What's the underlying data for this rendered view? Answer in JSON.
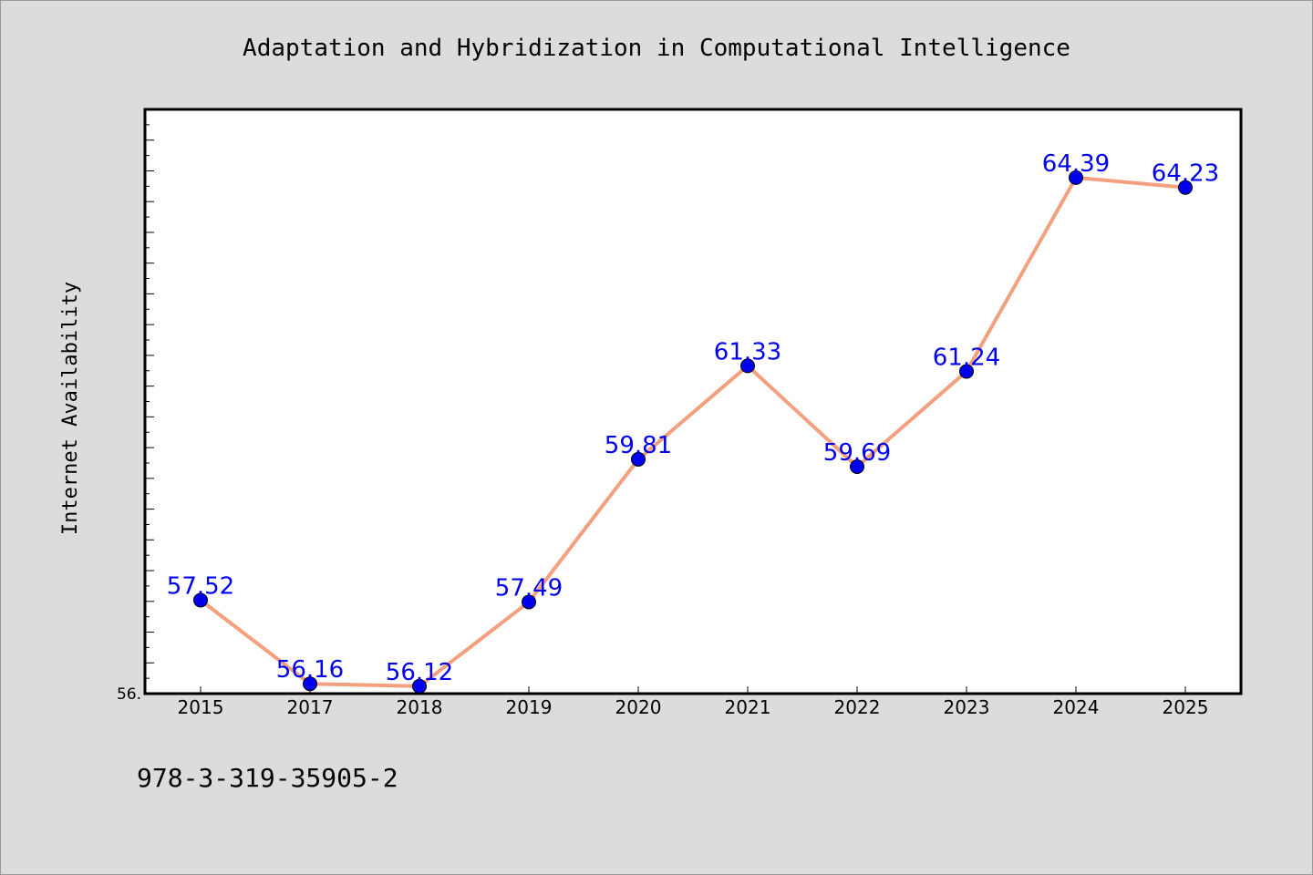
{
  "chart_data": {
    "type": "line",
    "title": "Adaptation and Hybridization in Computational Intelligence",
    "xlabel": "",
    "ylabel": "Internet Availability",
    "categories": [
      "2015",
      "2017",
      "2018",
      "2019",
      "2020",
      "2021",
      "2022",
      "2023",
      "2024",
      "2025"
    ],
    "series": [
      {
        "values": [
          57.52,
          56.16,
          56.12,
          57.49,
          59.81,
          61.33,
          59.69,
          61.24,
          64.39,
          64.23
        ],
        "labels": [
          "57.52",
          "56.16",
          "56.12",
          "57.49",
          "59.81",
          "61.33",
          "59.69",
          "61.24",
          "64.39",
          "64.23"
        ]
      }
    ],
    "ylim": [
      56.0,
      65.5
    ],
    "y_tick_labels": [
      "56."
    ],
    "grid": false,
    "line_color": "#f4a07e",
    "marker_color": "#0000ee",
    "label_color": "#0000ee"
  },
  "footer": {
    "isbn": "978-3-319-35905-2"
  }
}
